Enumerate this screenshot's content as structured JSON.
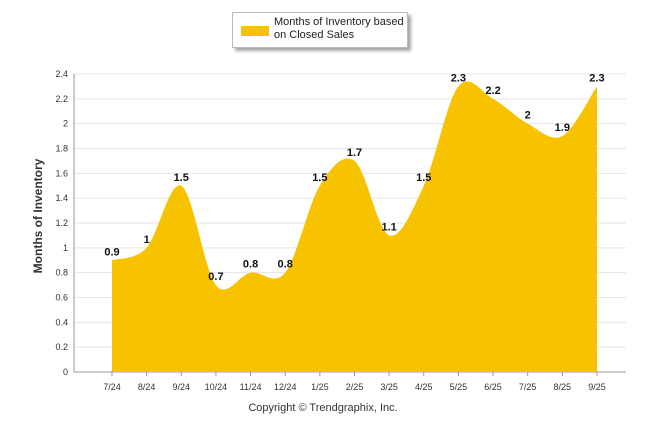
{
  "chart_data": {
    "type": "area",
    "title": "",
    "xlabel": "",
    "ylabel": "Months of Inventory",
    "ylim": [
      0,
      2.4
    ],
    "yticks": [
      0,
      0.2,
      0.4,
      0.6,
      0.8,
      1,
      1.2,
      1.4,
      1.6,
      1.8,
      2,
      2.2,
      2.4
    ],
    "ytick_labels": [
      "0",
      "0.2",
      "0.4",
      "0.6",
      "0.8",
      "1",
      "1.2",
      "1.4",
      "1.6",
      "1.8",
      "2",
      "2.2",
      "2.4"
    ],
    "grid": true,
    "categories": [
      "7/24",
      "8/24",
      "9/24",
      "10/24",
      "11/24",
      "12/24",
      "1/25",
      "2/25",
      "3/25",
      "4/25",
      "5/25",
      "6/25",
      "7/25",
      "8/25",
      "9/25"
    ],
    "series": [
      {
        "name": "Months of Inventory based on Closed Sales",
        "values": [
          0.9,
          1,
          1.5,
          0.7,
          0.8,
          0.8,
          1.5,
          1.7,
          1.1,
          1.5,
          2.3,
          2.2,
          2,
          1.9,
          2.3
        ],
        "labels": [
          "0.9",
          "1",
          "1.5",
          "0.7",
          "0.8",
          "0.8",
          "1.5",
          "1.7",
          "1.1",
          "1.5",
          "2.3",
          "2.2",
          "2",
          "1.9",
          "2.3"
        ],
        "color": "#F7C200"
      }
    ],
    "legend": {
      "position": "top-center",
      "label": "Months of Inventory based on Closed Sales"
    }
  },
  "footer": {
    "copyright": "Copyright © Trendgraphix, Inc."
  },
  "colors": {
    "fill": "#F7C200",
    "grid": "#e4e4e4",
    "axis": "#999999"
  }
}
